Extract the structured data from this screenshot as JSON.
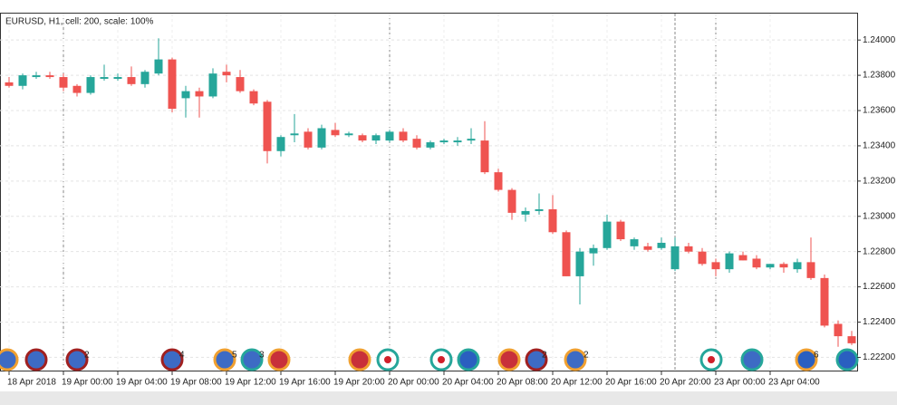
{
  "chart_data": {
    "type": "candlestick",
    "title": "EURUSD, H1, cell: 200, scale: 100%",
    "categories": [
      "18 Apr 2018",
      null,
      null,
      null,
      "19 Apr 00:00",
      null,
      null,
      null,
      "19 Apr 04:00",
      null,
      null,
      null,
      "19 Apr 08:00",
      null,
      null,
      null,
      "19 Apr 12:00",
      null,
      null,
      null,
      "19 Apr 16:00",
      null,
      null,
      null,
      "19 Apr 20:00",
      null,
      null,
      null,
      "20 Apr 00:00",
      null,
      null,
      null,
      "20 Apr 04:00",
      null,
      null,
      null,
      "20 Apr 08:00",
      null,
      null,
      null,
      "20 Apr 12:00",
      null,
      null,
      null,
      "20 Apr 16:00",
      null,
      null,
      null,
      "20 Apr 20:00",
      null,
      null,
      null,
      "23 Apr 00:00",
      null,
      null,
      null,
      "23 Apr 04:00",
      null,
      null,
      null,
      null,
      null,
      null
    ],
    "open": [
      1.2376,
      1.2374,
      1.2379,
      1.238,
      1.2379,
      1.2374,
      1.237,
      1.2378,
      1.2378,
      1.2379,
      1.2375,
      1.2381,
      1.2389,
      1.2367,
      1.2371,
      1.2368,
      1.2382,
      1.2379,
      1.2371,
      1.2365,
      1.2337,
      1.2346,
      1.2348,
      1.2339,
      1.2349,
      1.2346,
      1.2346,
      1.2343,
      1.2343,
      1.2348,
      1.2344,
      1.2339,
      1.2342,
      1.2342,
      1.2343,
      1.2343,
      1.2325,
      1.2315,
      1.2301,
      1.2303,
      1.2304,
      1.2291,
      1.2266,
      1.2279,
      1.2282,
      1.2297,
      1.2283,
      1.2283,
      1.2282,
      1.227,
      1.2283,
      1.228,
      1.2274,
      1.227,
      1.2278,
      1.2276,
      1.2271,
      1.2273,
      1.227,
      1.2274,
      1.2265,
      1.2239,
      1.2232
    ],
    "high": [
      1.2379,
      1.2381,
      1.2382,
      1.2382,
      1.2381,
      1.2375,
      1.238,
      1.2386,
      1.2381,
      1.2385,
      1.2383,
      1.2401,
      1.239,
      1.2374,
      1.2373,
      1.2384,
      1.2386,
      1.2383,
      1.2372,
      1.2366,
      1.2346,
      1.2358,
      1.235,
      1.2352,
      1.2353,
      1.2348,
      1.2347,
      1.2347,
      1.2349,
      1.235,
      1.2346,
      1.2343,
      1.2344,
      1.2345,
      1.235,
      1.2354,
      1.2327,
      1.2316,
      1.2305,
      1.2313,
      1.2312,
      1.2292,
      1.2282,
      1.2284,
      1.2301,
      1.2298,
      1.2288,
      1.2285,
      1.2288,
      1.2288,
      1.2285,
      1.2282,
      1.2276,
      1.228,
      1.228,
      1.2278,
      1.2273,
      1.2274,
      1.2276,
      1.2288,
      1.2267,
      1.2241,
      1.2235
    ],
    "low": [
      1.2373,
      1.2372,
      1.2378,
      1.2378,
      1.2371,
      1.2368,
      1.2369,
      1.2377,
      1.2377,
      1.2374,
      1.2373,
      1.238,
      1.2359,
      1.2356,
      1.2356,
      1.2367,
      1.2376,
      1.237,
      1.2363,
      1.233,
      1.2334,
      1.2342,
      1.2338,
      1.2338,
      1.2345,
      1.2345,
      1.2342,
      1.2341,
      1.2342,
      1.2342,
      1.2338,
      1.2338,
      1.2341,
      1.234,
      1.2341,
      1.2324,
      1.2314,
      1.2298,
      1.2297,
      1.2301,
      1.229,
      1.2266,
      1.225,
      1.2272,
      1.2281,
      1.2286,
      1.2281,
      1.228,
      1.2281,
      1.2269,
      1.2279,
      1.2272,
      1.2266,
      1.2268,
      1.2275,
      1.227,
      1.227,
      1.2268,
      1.2268,
      1.2264,
      1.2237,
      1.2226,
      1.2227
    ],
    "close": [
      1.2374,
      1.238,
      1.238,
      1.2379,
      1.2373,
      1.237,
      1.2379,
      1.2379,
      1.2379,
      1.2375,
      1.2382,
      1.2389,
      1.2361,
      1.2371,
      1.2368,
      1.2381,
      1.238,
      1.2371,
      1.2364,
      1.2337,
      1.2345,
      1.2347,
      1.2339,
      1.235,
      1.2346,
      1.2347,
      1.2343,
      1.2346,
      1.2348,
      1.2343,
      1.2339,
      1.2342,
      1.2343,
      1.2343,
      1.2344,
      1.2325,
      1.2315,
      1.2302,
      1.2303,
      1.2304,
      1.2291,
      1.2266,
      1.228,
      1.2282,
      1.2297,
      1.2287,
      1.2287,
      1.2281,
      1.2285,
      1.2283,
      1.228,
      1.2273,
      1.227,
      1.2279,
      1.2275,
      1.2271,
      1.2273,
      1.2271,
      1.2274,
      1.2265,
      1.2238,
      1.2232,
      1.2228
    ],
    "up_color": "#26a69a",
    "down_color": "#ef5350",
    "ylim": [
      1.2212,
      1.2415
    ],
    "yticks": [
      {
        "value": 1.24,
        "label": "1.24000"
      },
      {
        "value": 1.238,
        "label": "1.23800"
      },
      {
        "value": 1.236,
        "label": "1.23600"
      },
      {
        "value": 1.234,
        "label": "1.23400"
      },
      {
        "value": 1.232,
        "label": "1.23200"
      },
      {
        "value": 1.23,
        "label": "1.23000"
      },
      {
        "value": 1.228,
        "label": "1.22800"
      },
      {
        "value": 1.226,
        "label": "1.22600"
      },
      {
        "value": 1.224,
        "label": "1.22400"
      },
      {
        "value": 1.222,
        "label": "1.22200"
      }
    ],
    "grid": true,
    "event_counts": [
      2,
      4,
      5,
      3,
      2,
      2,
      6
    ]
  }
}
